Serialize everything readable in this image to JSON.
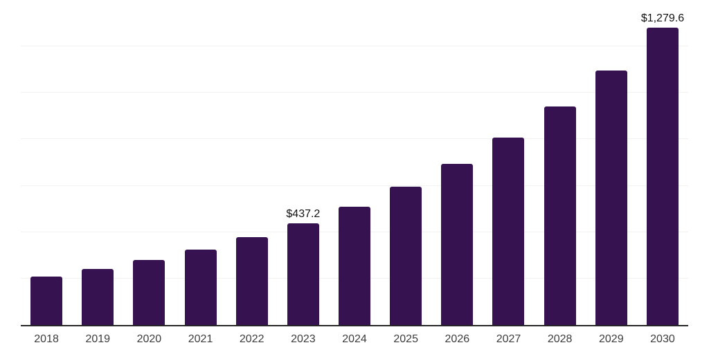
{
  "chart_data": {
    "type": "bar",
    "title": "",
    "xlabel": "",
    "ylabel": "",
    "categories": [
      "2018",
      "2019",
      "2020",
      "2021",
      "2022",
      "2023",
      "2024",
      "2025",
      "2026",
      "2027",
      "2028",
      "2029",
      "2030"
    ],
    "values": [
      210.0,
      241.5,
      279.0,
      324.5,
      379.5,
      437.2,
      510.7,
      595.0,
      693.0,
      808.0,
      941.8,
      1097.6,
      1279.6
    ],
    "annotations": [
      {
        "category": "2023",
        "text": "$437.2"
      },
      {
        "category": "2030",
        "text": "$1,279.6"
      }
    ],
    "ylim": [
      0,
      1400
    ],
    "gridline_step": 200,
    "grid": "horizontal",
    "y_axis_tick_labels_visible": false,
    "legend": "none",
    "colors": {
      "bar": "#361251",
      "gridline": "#f2f2f2",
      "axis_line": "#262626",
      "tick_label": "#3c3c3c",
      "value_label": "#111111",
      "background": "#ffffff"
    }
  }
}
